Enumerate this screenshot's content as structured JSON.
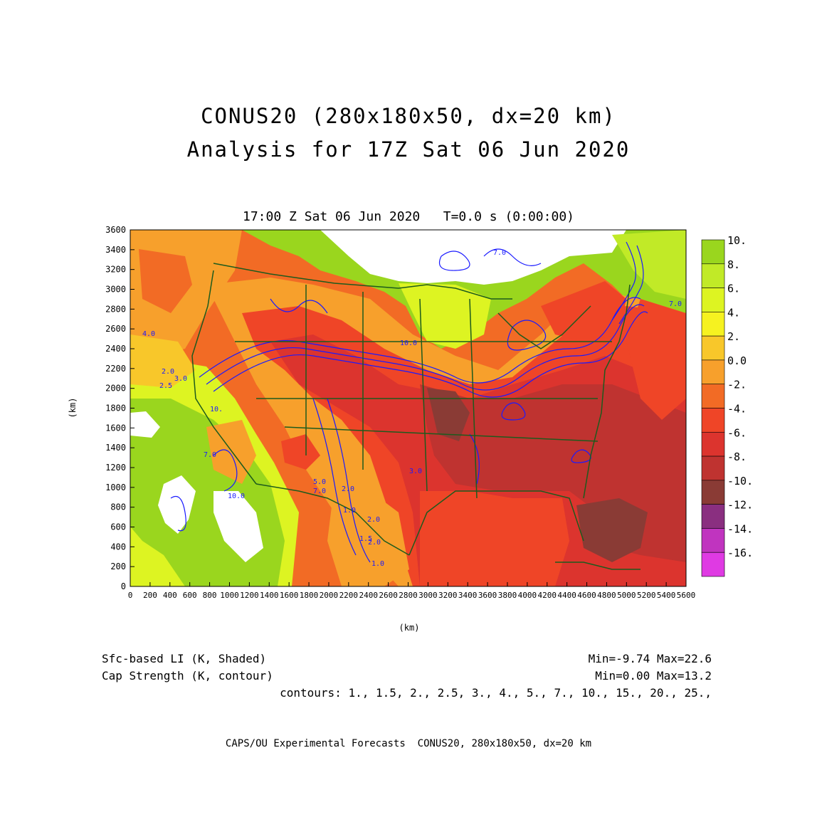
{
  "header": {
    "title_line1": "CONUS20 (280x180x50, dx=20 km)",
    "title_line2": "Analysis for 17Z Sat 06 Jun 2020",
    "plot_time": "17:00 Z Sat 06 Jun 2020   T=0.0 s (0:00:00)"
  },
  "axes": {
    "xlabel": "(km)",
    "ylabel": "(km)",
    "x_ticks": [
      "0",
      "200",
      "400",
      "600",
      "800",
      "1000",
      "1200",
      "1400",
      "1600",
      "1800",
      "2000",
      "2200",
      "2400",
      "2600",
      "2800",
      "3000",
      "3200",
      "3400",
      "3600",
      "3800",
      "4000",
      "4200",
      "4400",
      "4600",
      "4800",
      "5000",
      "5200",
      "5400",
      "5600"
    ],
    "y_ticks": [
      "0",
      "200",
      "400",
      "600",
      "800",
      "1000",
      "1200",
      "1400",
      "1600",
      "1800",
      "2000",
      "2200",
      "2400",
      "2600",
      "2800",
      "3000",
      "3200",
      "3400",
      "3600"
    ]
  },
  "colorbar": {
    "labels": [
      "10.",
      "8.",
      "6.",
      "4.",
      "2.",
      "0.0",
      "-2.",
      "-4.",
      "-6.",
      "-8.",
      "-10.",
      "-12.",
      "-14.",
      "-16."
    ],
    "colors": [
      "#9ad61e",
      "#c1ea27",
      "#ddf422",
      "#f6f220",
      "#f8c72a",
      "#f7a02c",
      "#f26b25",
      "#ef4527",
      "#dc342e",
      "#bf3330",
      "#8a3b35",
      "#8a2f80",
      "#c034bf",
      "#df3ae3"
    ]
  },
  "map": {
    "fill_colors": {
      "none": "#ffffff",
      "pos10": "#9ad61e",
      "pos8": "#c1ea27",
      "pos6": "#ddf422",
      "pos2": "#f8c72a",
      "zero": "#f7a02c",
      "neg2": "#f26b25",
      "neg4": "#ef4527",
      "neg6": "#dc342e",
      "neg8": "#bf3330",
      "neg10": "#8a3b35"
    },
    "contour_color": "#1a1aff",
    "boundary_color": "#1d5b1d",
    "contour_labels": [
      "7.0",
      "7.0",
      "10.0",
      "10.0",
      "4.0",
      "2.5",
      "3.0",
      "2.0",
      "5.0",
      "7.0",
      "10.",
      "3.0",
      "2.0",
      "2.0",
      "1.0",
      "1.5",
      "2.0",
      "1.0",
      "7.0"
    ]
  },
  "footer": {
    "field1_label": "Sfc-based LI (K, Shaded)",
    "field1_stats": "Min=-9.74 Max=22.6",
    "field2_label": "Cap Strength (K, contour)",
    "field2_stats": "Min=0.00 Max=13.2",
    "contours": "contours: 1., 1.5, 2., 2.5, 3., 4., 5., 7., 10., 15., 20., 25.,",
    "credit": "CAPS/OU Experimental Forecasts  CONUS20, 280x180x50, dx=20 km"
  }
}
